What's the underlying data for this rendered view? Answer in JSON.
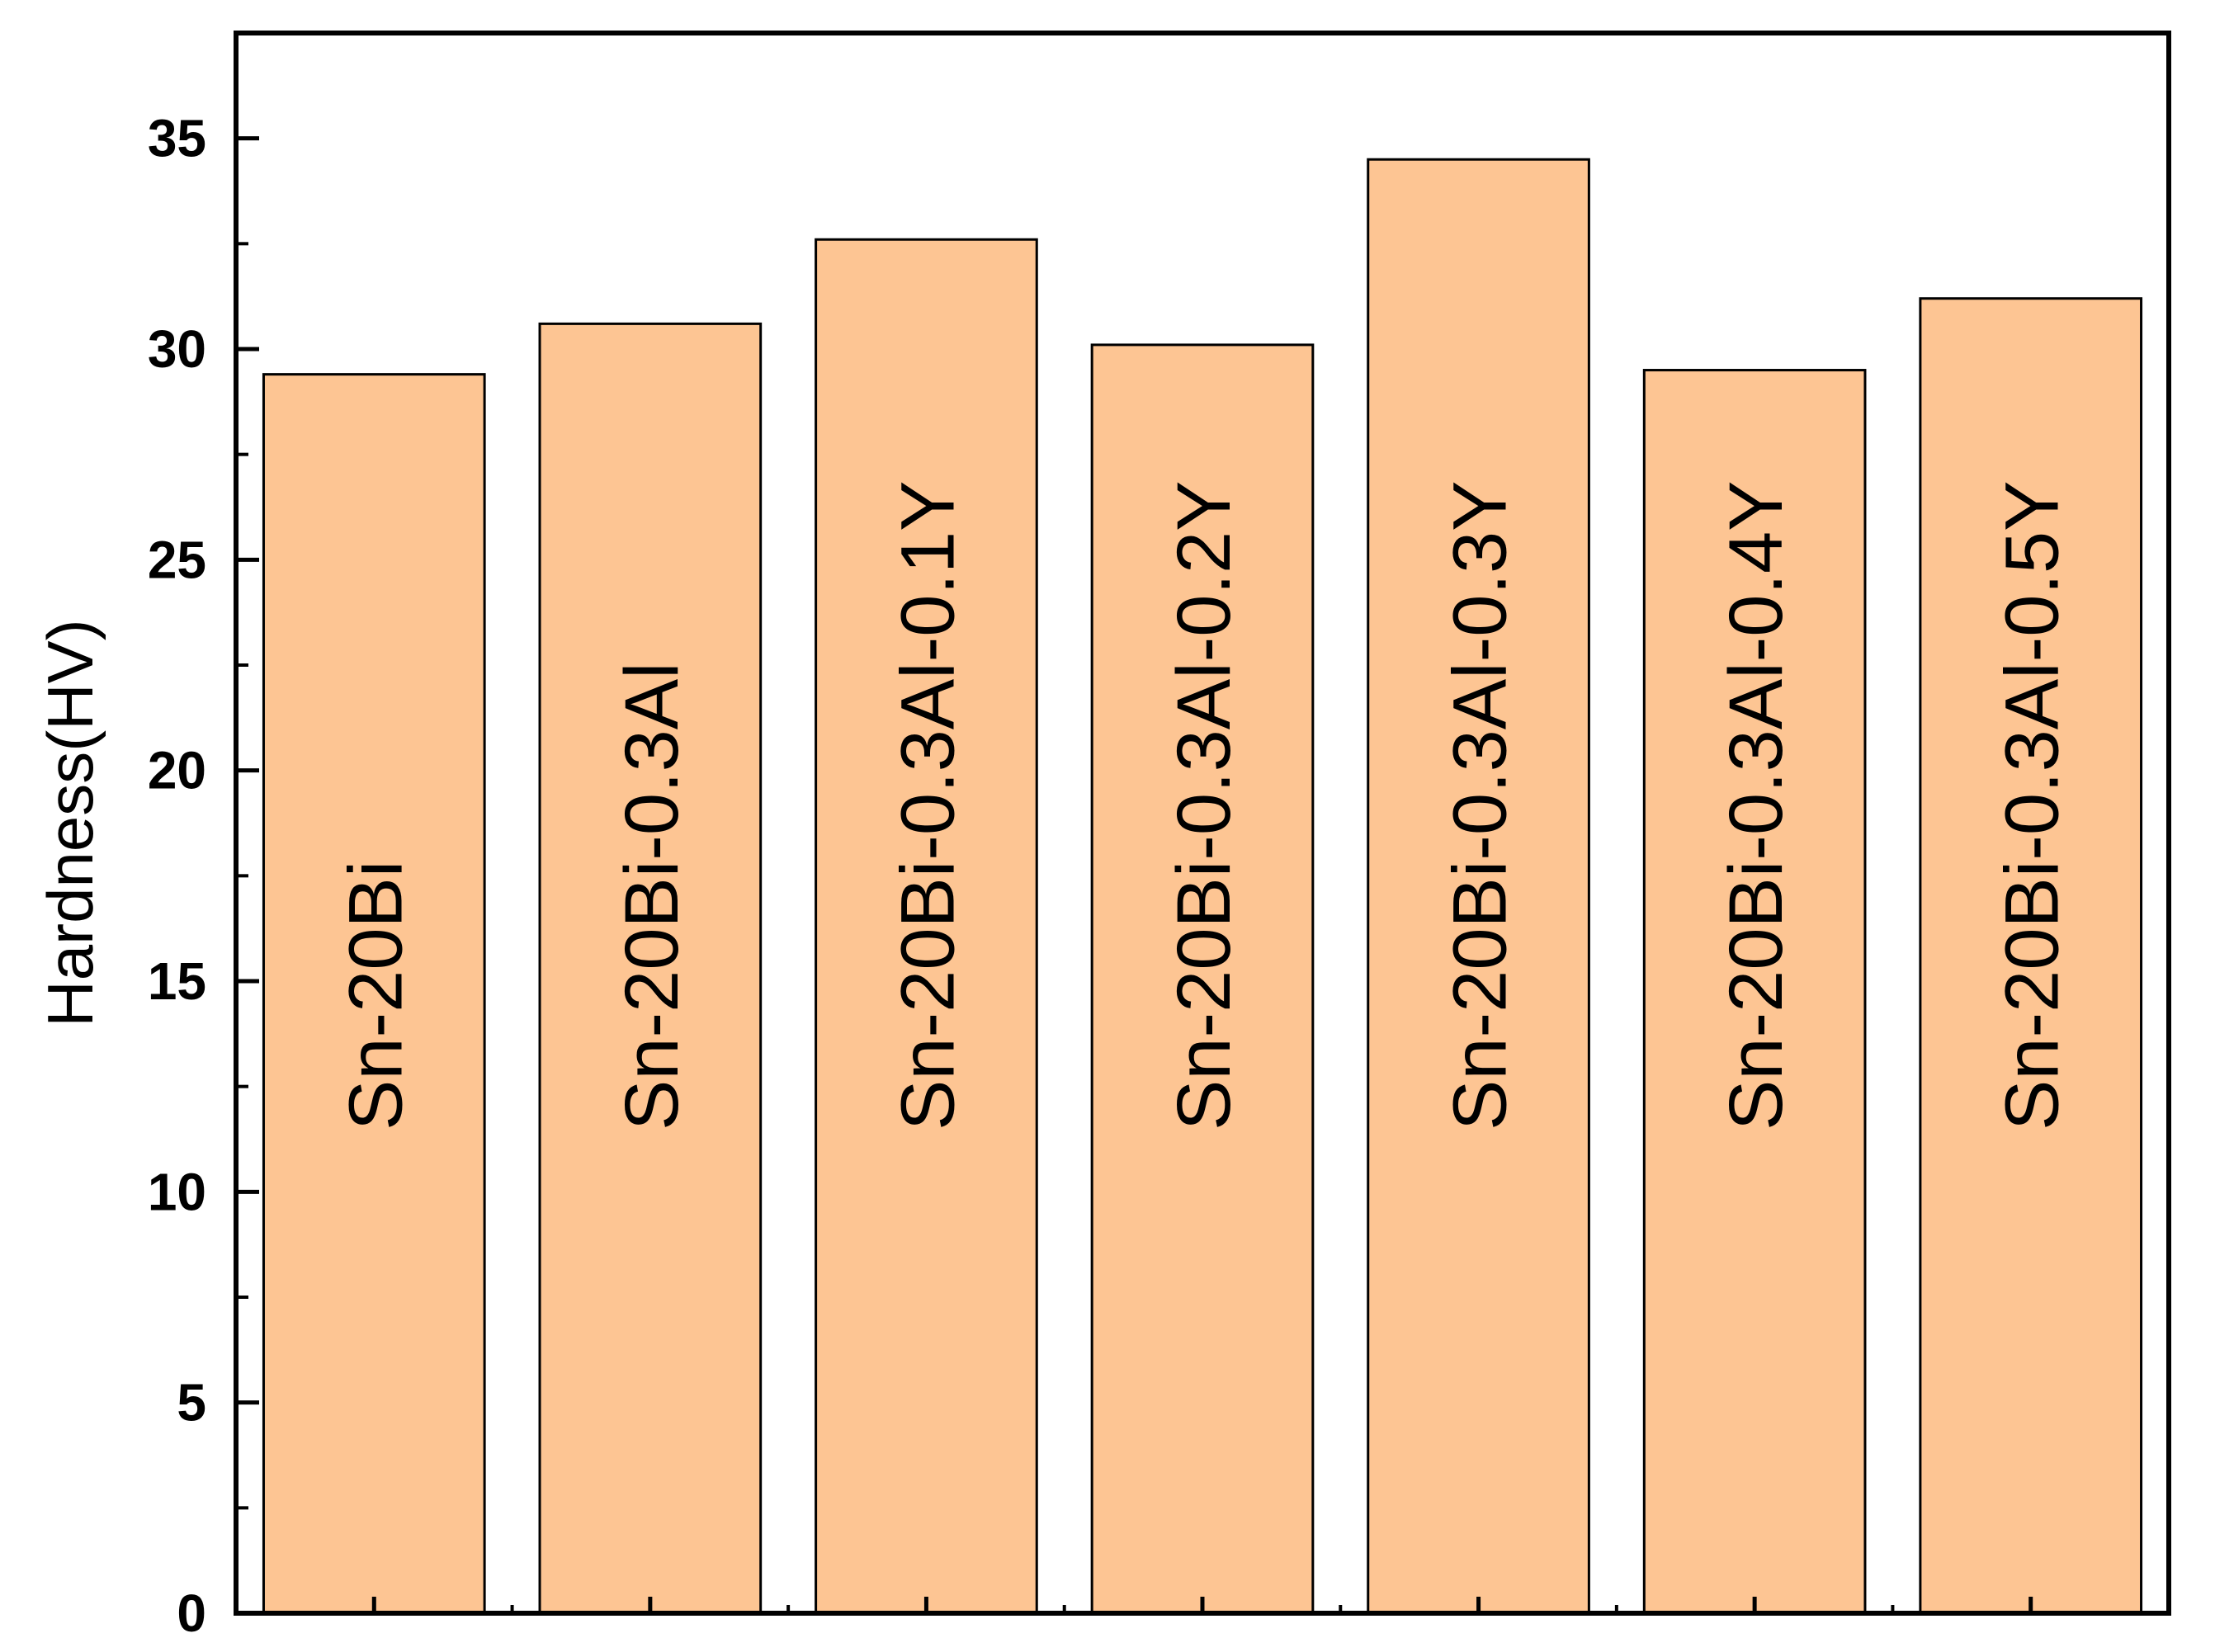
{
  "chart_data": {
    "type": "bar",
    "categories": [
      "Sn-20Bi",
      "Sn-20Bi-0.3Al",
      "Sn-20Bi-0.3Al-0.1Y",
      "Sn-20Bi-0.3Al-0.2Y",
      "Sn-20Bi-0.3Al-0.3Y",
      "Sn-20Bi-0.3Al-0.4Y",
      "Sn-20Bi-0.3Al-0.5Y"
    ],
    "values": [
      29.4,
      30.6,
      32.6,
      30.1,
      34.5,
      29.5,
      31.2
    ],
    "ylabel": "Hardness(HV)",
    "xlabel": "",
    "ylim": [
      0,
      37.5
    ],
    "yticks": [
      0,
      5,
      10,
      15,
      20,
      25,
      30,
      35
    ],
    "bar_color": "#fdc593",
    "bar_edge_color": "#000000",
    "grid": false,
    "legend": "none"
  }
}
